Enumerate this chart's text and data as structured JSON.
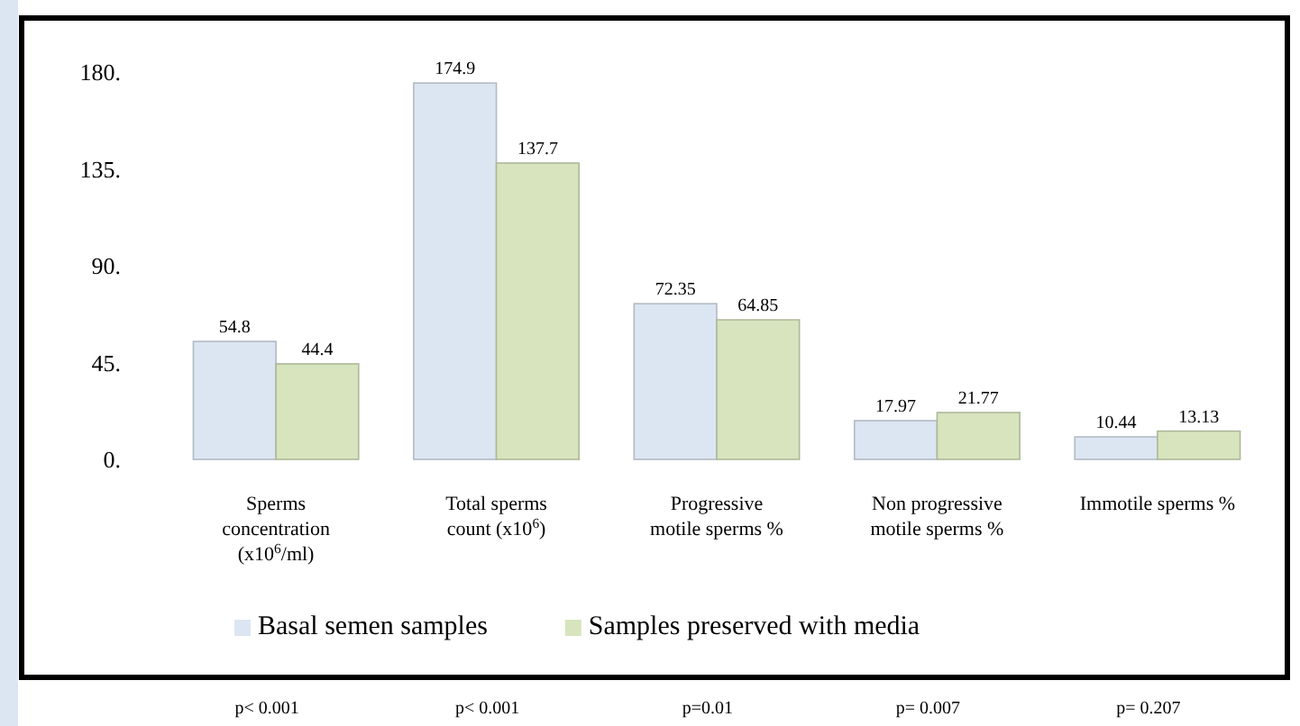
{
  "chart_data": {
    "type": "bar",
    "categories": [
      "Sperms concentration (x10$^{6}$/ml)",
      "Total sperms count (x10$^{6}$)",
      "Progressive motile sperms %",
      "Non progressive motile sperms %",
      "Immotile sperms %"
    ],
    "series": [
      {
        "name": "Basal semen samples",
        "color": "#dce6f2",
        "values": [
          54.8,
          174.9,
          72.35,
          17.97,
          10.44
        ]
      },
      {
        "name": "Samples preserved with media",
        "color": "#d7e4bd",
        "values": [
          44.4,
          137.7,
          64.85,
          21.77,
          13.13
        ]
      }
    ],
    "ylim": [
      0,
      180
    ],
    "yticks": [
      {
        "value": 0,
        "label": "0."
      },
      {
        "value": 45,
        "label": "45."
      },
      {
        "value": 90,
        "label": "90."
      },
      {
        "value": 135,
        "label": "135."
      },
      {
        "value": 180,
        "label": "180."
      }
    ],
    "data_labels": true,
    "legend": "bottom",
    "grid": false,
    "annotations": [
      "p< 0.001",
      "p< 0.001",
      "p=0.01",
      "p= 0.007",
      "p= 0.207"
    ]
  }
}
